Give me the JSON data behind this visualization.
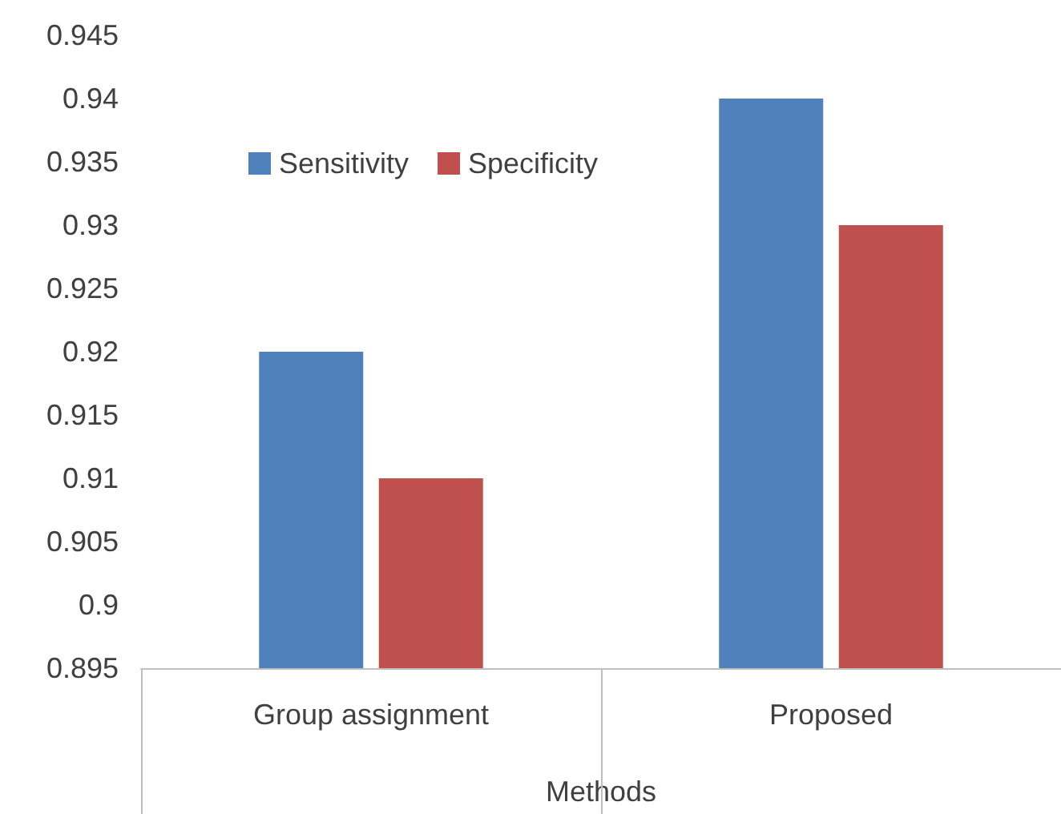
{
  "chart_data": {
    "type": "bar",
    "xlabel": "Methods",
    "categories": [
      "Group assignment",
      "Proposed"
    ],
    "series": [
      {
        "name": "Sensitivity",
        "color": "#4f81bd",
        "values": [
          0.92,
          0.94
        ]
      },
      {
        "name": "Specificity",
        "color": "#c0504d",
        "values": [
          0.91,
          0.93
        ]
      }
    ],
    "ylim": [
      0.895,
      0.945
    ],
    "yticks": [
      0.895,
      0.9,
      0.905,
      0.91,
      0.915,
      0.92,
      0.925,
      0.93,
      0.935,
      0.94,
      0.945
    ],
    "grid": false,
    "legend": "top left"
  }
}
